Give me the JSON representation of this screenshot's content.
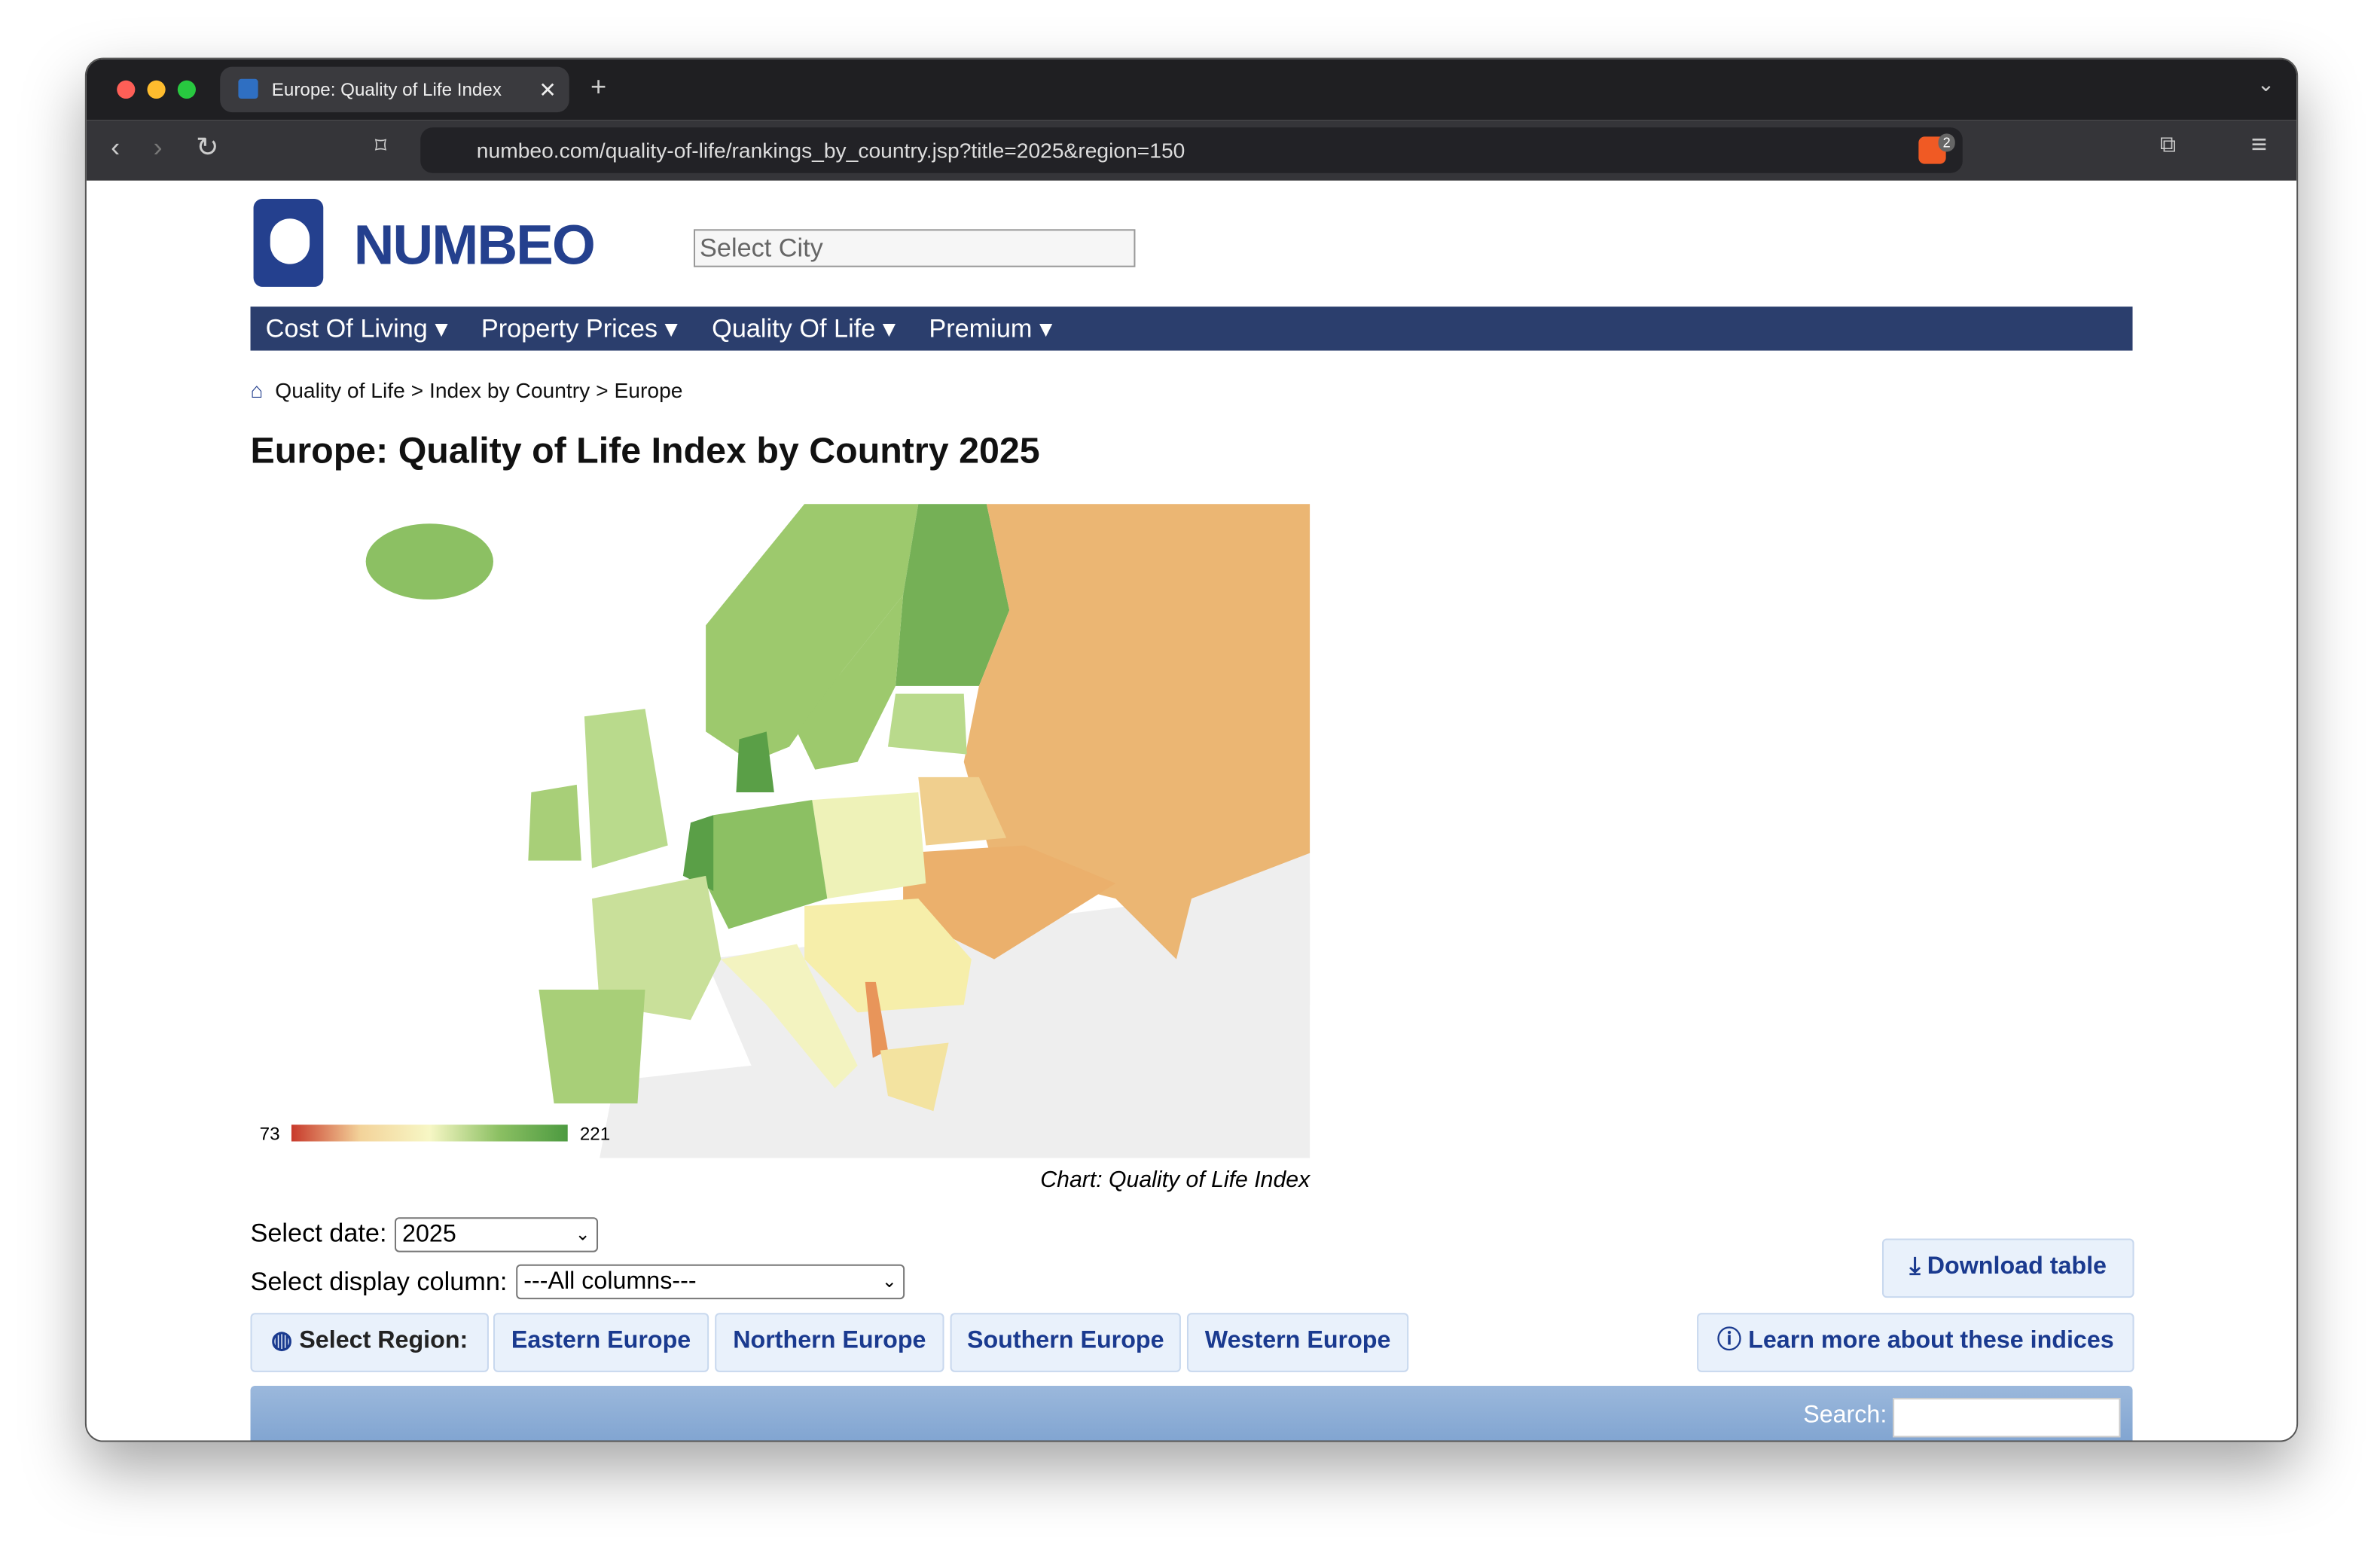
{
  "browser": {
    "tab_title": "Europe: Quality of Life Index",
    "url": "numbeo.com/quality-of-life/rankings_by_country.jsp?title=2025&region=150",
    "badge": "2"
  },
  "header": {
    "logo": "NUMBEO",
    "search_placeholder": "Select City"
  },
  "nav": [
    "Cost Of Living",
    "Property Prices",
    "Quality Of Life",
    "Premium"
  ],
  "breadcrumb": [
    "Quality of Life",
    "Index by Country",
    "Europe"
  ],
  "title": "Europe: Quality of Life Index by Country 2025",
  "map": {
    "legend_min": 73,
    "legend_max": 221,
    "caption": "Chart: Quality of Life Index"
  },
  "controls": {
    "date_label": "Select date:",
    "date_value": "2025",
    "column_label": "Select display column:",
    "column_value": "---All columns---",
    "download": "Download table"
  },
  "regions": {
    "label": "Select Region:",
    "items": [
      "Eastern Europe",
      "Northern Europe",
      "Southern Europe",
      "Western Europe"
    ]
  },
  "learn_more": "Learn more about these indices",
  "search_label": "Search:"
}
